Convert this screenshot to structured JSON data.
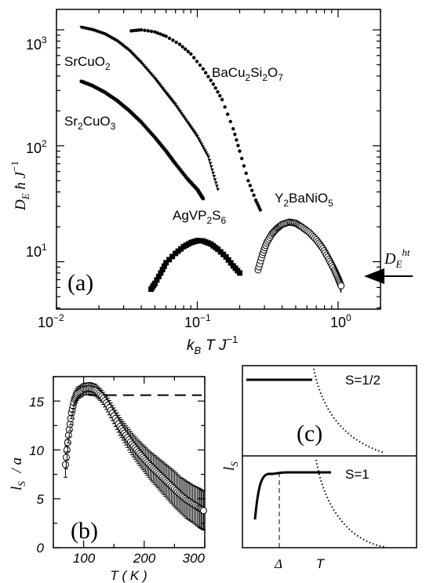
{
  "chart_data": [
    {
      "panel": "(a)",
      "type": "scatter",
      "xscale": "log",
      "yscale": "log",
      "xlim": [
        0.01,
        2
      ],
      "ylim": [
        3.9,
        1500
      ],
      "xticks": [
        "10^-2",
        "10^-1",
        "10^0"
      ],
      "yticks": [
        "10^1",
        "10^2",
        "10^3"
      ],
      "xlabel": {
        "main": "k",
        "sub1": "B",
        "rest": "T J",
        "sup": "−1"
      },
      "ylabel": {
        "main": "D",
        "sub1": "E",
        "rest": " ħ J",
        "sup": "−1"
      },
      "annotation": {
        "main": "D",
        "sub": "E",
        "sup": "ht",
        "value": 6.2
      },
      "series": [
        {
          "name": "SrCuO2",
          "marker": "small-triangle",
          "label": {
            "base": "SrCuO",
            "sub": "2"
          },
          "points": [
            [
              0.015,
              1050
            ],
            [
              0.018,
              1000
            ],
            [
              0.022,
              920
            ],
            [
              0.027,
              800
            ],
            [
              0.033,
              660
            ],
            [
              0.04,
              520
            ],
            [
              0.05,
              380
            ],
            [
              0.06,
              285
            ],
            [
              0.07,
              225
            ],
            [
              0.085,
              160
            ],
            [
              0.1,
              120
            ],
            [
              0.12,
              80
            ],
            [
              0.14,
              42
            ]
          ]
        },
        {
          "name": "Sr2CuO3",
          "marker": "small-square",
          "label": {
            "base": "Sr",
            "sub1": "2",
            "mid": "CuO",
            "sub2": "3"
          },
          "points": [
            [
              0.015,
              360
            ],
            [
              0.018,
              330
            ],
            [
              0.022,
              290
            ],
            [
              0.027,
              245
            ],
            [
              0.033,
              200
            ],
            [
              0.04,
              160
            ],
            [
              0.05,
              118
            ],
            [
              0.06,
              90
            ],
            [
              0.07,
              70
            ],
            [
              0.085,
              52
            ],
            [
              0.1,
              42
            ],
            [
              0.11,
              35
            ]
          ]
        },
        {
          "name": "BaCu2Si2O7",
          "marker": "dot",
          "label": {
            "base": "BaCu",
            "sub1": "2",
            "mid": "Si",
            "sub2": "2",
            "end": "O",
            "sub3": "7"
          },
          "points": [
            [
              0.034,
              980
            ],
            [
              0.04,
              1000
            ],
            [
              0.05,
              960
            ],
            [
              0.06,
              880
            ],
            [
              0.075,
              750
            ],
            [
              0.09,
              620
            ],
            [
              0.11,
              460
            ],
            [
              0.13,
              340
            ],
            [
              0.15,
              250
            ],
            [
              0.18,
              140
            ],
            [
              0.2,
              90
            ],
            [
              0.23,
              50
            ],
            [
              0.26,
              34
            ],
            [
              0.28,
              28
            ]
          ]
        },
        {
          "name": "AgVP2S6",
          "marker": "square",
          "label": {
            "base": "AgVP",
            "sub1": "2",
            "mid": "S",
            "sub2": "6"
          },
          "points": [
            [
              0.047,
              5.8
            ],
            [
              0.05,
              6.5
            ],
            [
              0.055,
              8
            ],
            [
              0.06,
              9.8
            ],
            [
              0.07,
              11.8
            ],
            [
              0.08,
              13.5
            ],
            [
              0.09,
              14.6
            ],
            [
              0.1,
              15.2
            ],
            [
              0.11,
              15.1
            ],
            [
              0.125,
              14.2
            ],
            [
              0.14,
              12.8
            ],
            [
              0.16,
              11
            ],
            [
              0.18,
              9.2
            ],
            [
              0.2,
              8
            ]
          ]
        },
        {
          "name": "Y2BaNiO5",
          "marker": "open-circle",
          "label": {
            "base": "Y",
            "sub1": "2",
            "mid": "BaNiO",
            "sub2": "5"
          },
          "points": [
            [
              0.27,
              8.5
            ],
            [
              0.29,
              11.5
            ],
            [
              0.31,
              14.5
            ],
            [
              0.34,
              17.5
            ],
            [
              0.37,
              19.5
            ],
            [
              0.4,
              21
            ],
            [
              0.45,
              22
            ],
            [
              0.5,
              21.5
            ],
            [
              0.55,
              20
            ],
            [
              0.62,
              18
            ],
            [
              0.7,
              15.5
            ],
            [
              0.78,
              13
            ],
            [
              0.86,
              10.5
            ],
            [
              0.94,
              8.5
            ],
            [
              1.0,
              7.2
            ],
            [
              1.05,
              6.2
            ]
          ]
        }
      ],
      "panel_label": "(a)"
    },
    {
      "panel": "(b)",
      "type": "scatter",
      "xlim": [
        50,
        300
      ],
      "ylim": [
        0,
        17.5
      ],
      "xticks": [
        "100",
        "200",
        "300"
      ],
      "yticks": [
        "0",
        "5",
        "10",
        "15"
      ],
      "xlabel": {
        "text": "T ( K )"
      },
      "ylabel": {
        "main": "l",
        "sub": "S",
        "rest": " / a"
      },
      "reference_line": 15.6,
      "points": [
        [
          70,
          8.5
        ],
        [
          75,
          11.5
        ],
        [
          80,
          13.8
        ],
        [
          85,
          15.2
        ],
        [
          90,
          15.8
        ],
        [
          100,
          16.2
        ],
        [
          110,
          16.3
        ],
        [
          120,
          16.1
        ],
        [
          130,
          15.5
        ],
        [
          140,
          14.6
        ],
        [
          150,
          13.5
        ],
        [
          160,
          12.4
        ],
        [
          170,
          11.5
        ],
        [
          180,
          10.6
        ],
        [
          190,
          9.8
        ],
        [
          200,
          9.1
        ],
        [
          210,
          8.4
        ],
        [
          220,
          7.8
        ],
        [
          230,
          7.2
        ],
        [
          240,
          6.6
        ],
        [
          250,
          6.0
        ],
        [
          260,
          5.4
        ],
        [
          270,
          4.9
        ],
        [
          280,
          4.5
        ],
        [
          290,
          4.1
        ],
        [
          298,
          3.8
        ]
      ],
      "error_bar": [
        1.3,
        0.8,
        0.6,
        0.6,
        0.6,
        0.6,
        0.6,
        0.6,
        0.6,
        0.7,
        0.8,
        0.9,
        1.0,
        1.1,
        1.2,
        1.3,
        1.4,
        1.5,
        1.6,
        1.7,
        1.8,
        1.8,
        1.9,
        1.9,
        2.0,
        2.0
      ],
      "panel_label": "(b)"
    },
    {
      "panel": "(c)",
      "type": "line",
      "ylabel": {
        "main": "l",
        "sub": "S"
      },
      "xtick_labels": [
        "Δ",
        "T"
      ],
      "subpanels": [
        {
          "label": "S=1/2"
        },
        {
          "label": "S=1"
        }
      ],
      "panel_label": "(c)"
    }
  ]
}
